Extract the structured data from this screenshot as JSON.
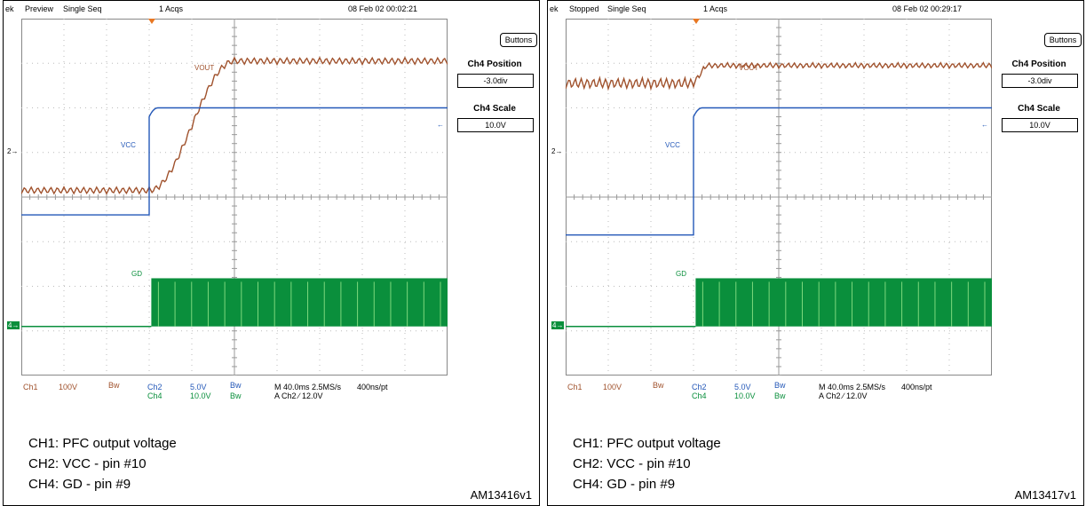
{
  "chart_data": [
    {
      "type": "line",
      "title": "",
      "status": {
        "prefix": "ek",
        "state": "Preview",
        "mode": "Single Seq",
        "acqs": "1 Acqs",
        "datetime": "08 Feb 02 00:02:21"
      },
      "button": "Buttons",
      "ch4_position": {
        "label": "Ch4 Position",
        "value": "-3.0div"
      },
      "ch4_scale": {
        "label": "Ch4 Scale",
        "value": "10.0V"
      },
      "trace_labels": {
        "vout": "VOUT",
        "vcc": "VCC",
        "gd": "GD"
      },
      "markers": {
        "ch2": "2",
        "ch4": "4"
      },
      "readouts": {
        "ch1": "Ch1",
        "ch1_scale": "100V",
        "ch1_bw": "Bw",
        "ch2": "Ch2",
        "ch2_scale": "5.0V",
        "ch2_bw": "Bw",
        "ch4": "Ch4",
        "ch4_scale": "10.0V",
        "ch4_bw": "Bw",
        "timebase": "M 40.0ms 2.5MS/s",
        "record": "400ns/pt",
        "trigger": "A  Ch2  ∕  12.0V"
      },
      "captions": [
        "CH1: PFC output voltage",
        "CH2: VCC - pin #10",
        "CH4: GD - pin #9"
      ],
      "figure_id": "AM13416v1",
      "x_divisions": 10,
      "y_divisions": 8,
      "event_div": 3.0,
      "series": [
        {
          "name": "VOUT",
          "color": "#a0522d",
          "shape": "ramp",
          "low_div": 4.15,
          "high_div": 7.05,
          "ripple_div": 0.15,
          "rise_start_div": 3.0,
          "rise_end_div": 5.0
        },
        {
          "name": "VCC",
          "color": "#2458b8",
          "shape": "step",
          "low_div": 3.6,
          "high_div": 6.0,
          "rise_start_div": 3.0,
          "rise_end_div": 3.1
        },
        {
          "name": "GD",
          "color": "#0a8f3c",
          "shape": "gate",
          "low_div": 1.1,
          "high_div": 2.18,
          "start_div": 3.05
        }
      ]
    },
    {
      "type": "line",
      "title": "",
      "status": {
        "prefix": "ek",
        "state": "Stopped",
        "mode": "Single Seq",
        "acqs": "1 Acqs",
        "datetime": "08 Feb 02 00:29:17"
      },
      "button": "Buttons",
      "ch4_position": {
        "label": "Ch4 Position",
        "value": "-3.0div"
      },
      "ch4_scale": {
        "label": "Ch4 Scale",
        "value": "10.0V"
      },
      "trace_labels": {
        "vout": "VOUT",
        "vcc": "VCC",
        "gd": "GD"
      },
      "markers": {
        "ch2": "2",
        "ch4": "4"
      },
      "readouts": {
        "ch1": "Ch1",
        "ch1_scale": "100V",
        "ch1_bw": "Bw",
        "ch2": "Ch2",
        "ch2_scale": "5.0V",
        "ch2_bw": "Bw",
        "ch4": "Ch4",
        "ch4_scale": "10.0V",
        "ch4_bw": "Bw",
        "timebase": "M 40.0ms 2.5MS/s",
        "record": "400ns/pt",
        "trigger": "A  Ch2  ∕  12.0V"
      },
      "captions": [
        "CH1: PFC output voltage",
        "CH2: VCC - pin #10",
        "CH4: GD - pin #9"
      ],
      "figure_id": "AM13417v1",
      "x_divisions": 10,
      "y_divisions": 8,
      "event_div": 3.0,
      "series": [
        {
          "name": "VOUT",
          "color": "#a0522d",
          "shape": "settle",
          "low_div": 6.55,
          "high_div": 6.95,
          "ripple_div": 0.15,
          "rise_start_div": 3.0,
          "rise_end_div": 3.3
        },
        {
          "name": "VCC",
          "color": "#2458b8",
          "shape": "step",
          "low_div": 3.15,
          "high_div": 6.0,
          "rise_start_div": 3.0,
          "rise_end_div": 3.1
        },
        {
          "name": "GD",
          "color": "#0a8f3c",
          "shape": "gate",
          "low_div": 1.1,
          "high_div": 2.18,
          "start_div": 3.05
        }
      ]
    }
  ]
}
